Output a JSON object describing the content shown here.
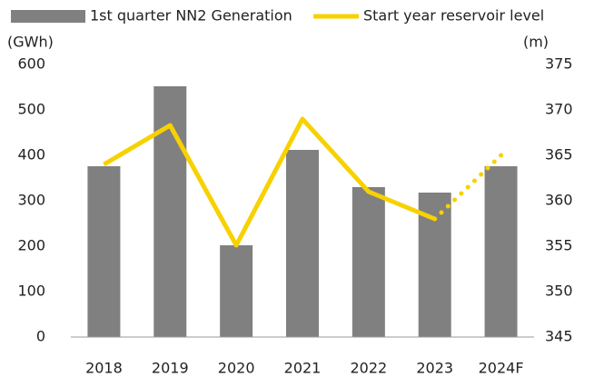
{
  "chart_data": {
    "type": "bar_line",
    "categories": [
      "2018",
      "2019",
      "2020",
      "2021",
      "2022",
      "2023",
      "2024F"
    ],
    "series": [
      {
        "name": "1st quarter NN2 Generation",
        "color": "#808080",
        "type": "bar",
        "axis": "y",
        "values": [
          376,
          552,
          202,
          412,
          330,
          318,
          376
        ]
      },
      {
        "name": "Start year reservoir level",
        "color": "#f7d100",
        "type": "line",
        "axis": "y2",
        "values": [
          364,
          368.3,
          355.1,
          369,
          361,
          358,
          365
        ],
        "dotted_from_index": 5
      }
    ],
    "ylabel": "(GWh)",
    "y2label": "(m)",
    "ylim": [
      0,
      600
    ],
    "yticks": [
      0,
      100,
      200,
      300,
      400,
      500,
      600
    ],
    "y2lim": [
      345,
      375
    ],
    "y2ticks": [
      345,
      350,
      355,
      360,
      365,
      370,
      375
    ],
    "legend": "top"
  }
}
